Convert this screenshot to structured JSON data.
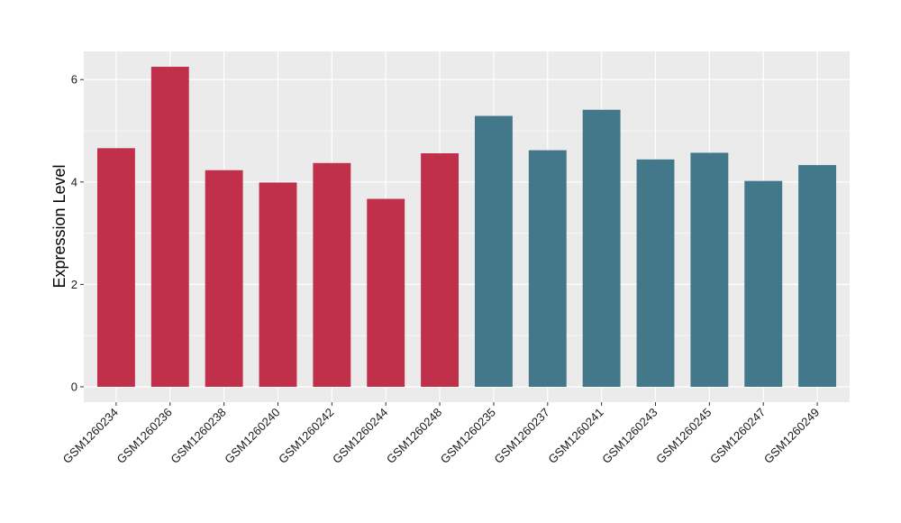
{
  "chart_data": {
    "type": "bar",
    "title": "",
    "xlabel": "",
    "ylabel": "Expression Level",
    "ylim": [
      -0.3,
      6.55
    ],
    "yticks": [
      0,
      2,
      4,
      6
    ],
    "grid": true,
    "legend": "none",
    "background_color": "#ebebeb",
    "gridline_color": "#ffffff",
    "categories": [
      "GSM1260234",
      "GSM1260236",
      "GSM1260238",
      "GSM1260240",
      "GSM1260242",
      "GSM1260244",
      "GSM1260248",
      "GSM1260235",
      "GSM1260237",
      "GSM1260241",
      "GSM1260243",
      "GSM1260245",
      "GSM1260247",
      "GSM1260249"
    ],
    "values": [
      4.66,
      6.25,
      4.23,
      3.99,
      4.37,
      3.67,
      4.56,
      5.29,
      4.62,
      5.41,
      4.44,
      4.57,
      4.02,
      4.33
    ],
    "bar_colors": [
      "#c0304a",
      "#c0304a",
      "#c0304a",
      "#c0304a",
      "#c0304a",
      "#c0304a",
      "#c0304a",
      "#42788a",
      "#42788a",
      "#42788a",
      "#42788a",
      "#42788a",
      "#42788a",
      "#42788a"
    ]
  }
}
